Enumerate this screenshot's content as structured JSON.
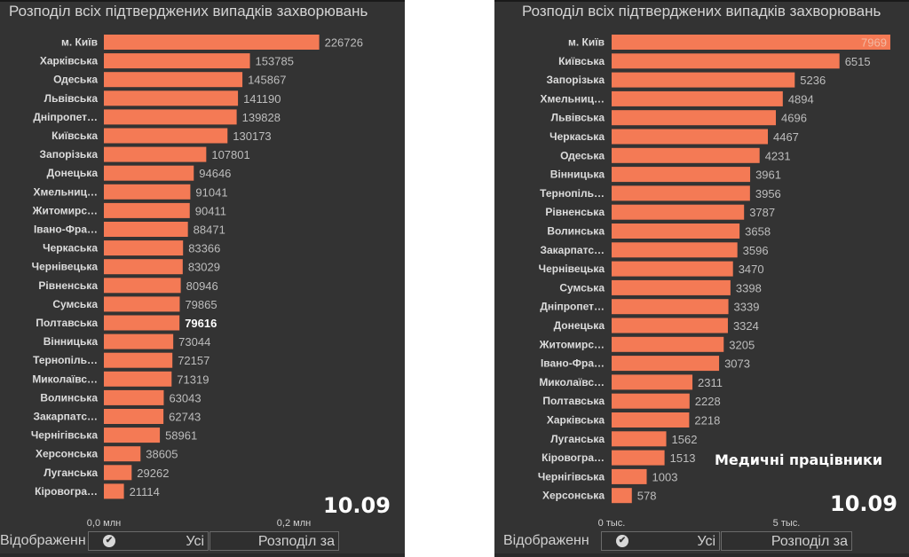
{
  "panels": [
    {
      "title": "Розподіл всіх підтверджених випадків захворювань",
      "date": "10.09",
      "caption": "",
      "footer": {
        "label": "Відображенн",
        "all_button": "Усі",
        "split_button": "Розподіл за",
        "check_icon": "✔"
      },
      "chart_data": {
        "type": "bar",
        "orientation": "horizontal",
        "title": "Розподіл всіх підтверджених випадків захворювань",
        "categories": [
          "м. Київ",
          "Харківська",
          "Одеська",
          "Львівська",
          "Дніпропет…",
          "Київська",
          "Запорізька",
          "Донецька",
          "Хмельниц…",
          "Житомирс…",
          "Івано-Фра…",
          "Черкаська",
          "Чернівецька",
          "Рівненська",
          "Сумська",
          "Полтавська",
          "Вінницька",
          "Тернопіль…",
          "Миколаївс…",
          "Волинська",
          "Закарпатс…",
          "Чернігівська",
          "Херсонська",
          "Луганська",
          "Кіровогра…"
        ],
        "values": [
          226726,
          153785,
          145867,
          141190,
          139828,
          130173,
          107801,
          94646,
          91041,
          90411,
          88471,
          83366,
          83029,
          80946,
          79865,
          79616,
          73044,
          72157,
          71319,
          63043,
          62743,
          58961,
          38605,
          29262,
          21114
        ],
        "highlighted_index": 15,
        "xlim": [
          0,
          0.2
        ],
        "x_unit_scale": 1000000,
        "xticks": [
          0,
          0.2
        ],
        "xtick_labels": [
          "0,0 млн",
          "0,2 млн"
        ],
        "bar_color": "#f47a55",
        "xlabel": "",
        "ylabel": "",
        "grid": false
      }
    },
    {
      "title": "Розподіл всіх підтверджених випадків захворювань",
      "date": "10.09",
      "caption": "Медичні працівники",
      "footer": {
        "label": "Відображенн",
        "all_button": "Усі",
        "split_button": "Розподіл за",
        "check_icon": "✔"
      },
      "chart_data": {
        "type": "bar",
        "orientation": "horizontal",
        "title": "Розподіл всіх підтверджених випадків захворювань",
        "categories": [
          "м. Київ",
          "Київська",
          "Запорізька",
          "Хмельниц…",
          "Львівська",
          "Черкаська",
          "Одеська",
          "Вінницька",
          "Тернопіль…",
          "Рівненська",
          "Волинська",
          "Закарпатс…",
          "Чернівецька",
          "Сумська",
          "Дніпропет…",
          "Донецька",
          "Житомирс…",
          "Івано-Фра…",
          "Миколаївс…",
          "Полтавська",
          "Харківська",
          "Луганська",
          "Кіровогра…",
          "Чернігівська",
          "Херсонська"
        ],
        "values": [
          7969,
          6515,
          5236,
          4894,
          4696,
          4467,
          4231,
          3961,
          3956,
          3787,
          3658,
          3596,
          3470,
          3398,
          3339,
          3324,
          3205,
          3073,
          2311,
          2228,
          2218,
          1562,
          1513,
          1003,
          578
        ],
        "highlighted_index": -1,
        "xlim": [
          0,
          5
        ],
        "x_unit_scale": 1000,
        "xticks": [
          0,
          5
        ],
        "xtick_labels": [
          "0 тыс.",
          "5 тыс."
        ],
        "bar_color": "#f47a55",
        "xlabel": "",
        "ylabel": "",
        "grid": false
      }
    }
  ]
}
